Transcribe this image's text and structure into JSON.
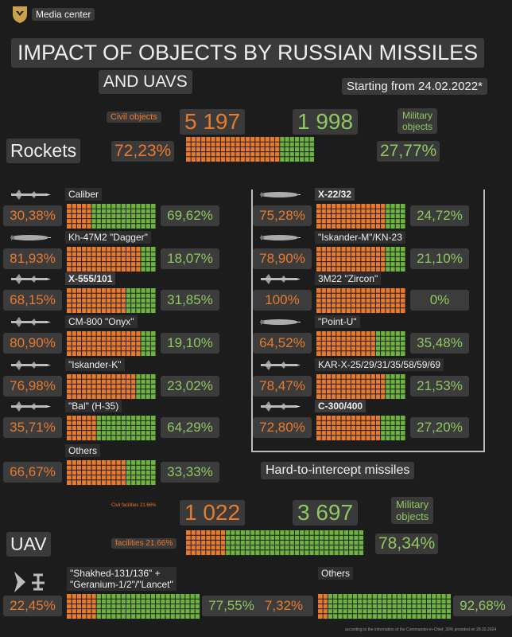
{
  "header": {
    "brand": "Media center"
  },
  "title": {
    "line1": "IMPACT OF OBJECTS BY RUSSIAN MISSILES",
    "line2": "AND UAVS",
    "since": "Starting from 24.02.2022*"
  },
  "rockets": {
    "section": "Rockets",
    "civil_label": "Civil objects",
    "military_label_1": "Military",
    "military_label_2": "objects",
    "civil_count": "5 197",
    "military_count": "1 998",
    "civil_pct_text": "72,23%",
    "military_pct_text": "27,77%"
  },
  "hard_label": "Hard-to-intercept missiles",
  "uav": {
    "section": "UAV",
    "civil_small": "Civil facilities 21.66%",
    "civil_label": "facilities 21.66%",
    "military_label_1": "Military",
    "military_label_2": "objects",
    "civil_count": "1 022",
    "military_count": "3 697",
    "military_pct_text": "78,34%"
  },
  "footnote": "according to the information of the Commander-in-Chief, 30% provided on 28.02.2024",
  "colors": {
    "civil": "#e87a2e",
    "military": "#6cb33f",
    "background": "#1c1c1c"
  },
  "chart_data": {
    "type": "bar",
    "title": "IMPACT OF OBJECTS BY RUSSIAN MISSILES AND UAVS",
    "subtitle": "Starting from 24.02.2022*",
    "series_names": [
      "Civil objects",
      "Military objects"
    ],
    "totals": [
      {
        "name": "Rockets",
        "civil": 5197,
        "military": 1998,
        "civil_pct": 72.23,
        "military_pct": 27.77
      },
      {
        "name": "UAV",
        "civil": 1022,
        "military": 3697,
        "civil_pct": 21.66,
        "military_pct": 78.34
      }
    ],
    "missiles": [
      {
        "name": "Caliber",
        "civil": "30,38%",
        "military": "69,62%",
        "civil_pct": 30.38,
        "icon": "cruise-missile-icon"
      },
      {
        "name": "Kh-47M2 \"Dagger\"",
        "civil": "81,93%",
        "military": "18,07%",
        "civil_pct": 81.93,
        "icon": "ballistic-missile-icon"
      },
      {
        "name": "X-555/101",
        "civil": "68,15%",
        "military": "31,85%",
        "civil_pct": 68.15,
        "icon": "cruise-missile-icon",
        "bold": true
      },
      {
        "name": "CM-800 \"Onyx\"",
        "civil": "80,90%",
        "military": "19,10%",
        "civil_pct": 80.9,
        "icon": "cruise-missile-icon"
      },
      {
        "name": "\"Iskander-K\"",
        "civil": "76,98%",
        "military": "23,02%",
        "civil_pct": 76.98,
        "icon": "cruise-missile-icon"
      },
      {
        "name": "\"Bal\" (H-35)",
        "civil": "35,71%",
        "military": "64,29%",
        "civil_pct": 35.71,
        "icon": "cruise-missile-icon"
      },
      {
        "name": "Others",
        "civil": "66,67%",
        "military": "33,33%",
        "civil_pct": 66.67,
        "icon": ""
      }
    ],
    "hard_missiles": [
      {
        "name": "X-22/32",
        "civil": "75,28%",
        "military": "24,72%",
        "civil_pct": 75.28,
        "icon": "ballistic-missile-icon",
        "bold": true
      },
      {
        "name": "\"Iskander-M\"/KN-23",
        "civil": "78,90%",
        "military": "21,10%",
        "civil_pct": 78.9,
        "icon": "ballistic-missile-icon"
      },
      {
        "name": "3M22 \"Zircon\"",
        "civil": "100%",
        "military": "0%",
        "civil_pct": 100,
        "icon": "cruise-missile-icon"
      },
      {
        "name": "\"Point-U\"",
        "civil": "64,52%",
        "military": "35,48%",
        "civil_pct": 64.52,
        "icon": "ballistic-missile-icon"
      },
      {
        "name": "KAR-X-25/29/31/35/58/59/69",
        "civil": "78,47%",
        "military": "21,53%",
        "civil_pct": 78.47,
        "icon": "cruise-missile-icon"
      },
      {
        "name": "C-300/400",
        "civil": "72,80%",
        "military": "27,20%",
        "civil_pct": 72.8,
        "icon": "cruise-missile-icon",
        "bold": true
      }
    ],
    "uav_types": [
      {
        "name1": "\"Shakhed-131/136\" +",
        "name2": "\"Geranium-1/2\"/\"Lancet\"",
        "civil": "22,45%",
        "military": "77,55%",
        "civil_pct": 22.45,
        "icon": "drone-icon"
      },
      {
        "name1": "Others",
        "name2": "",
        "civil": "7,32%",
        "military": "92,68%",
        "civil_pct": 7.32,
        "icon": ""
      }
    ]
  }
}
